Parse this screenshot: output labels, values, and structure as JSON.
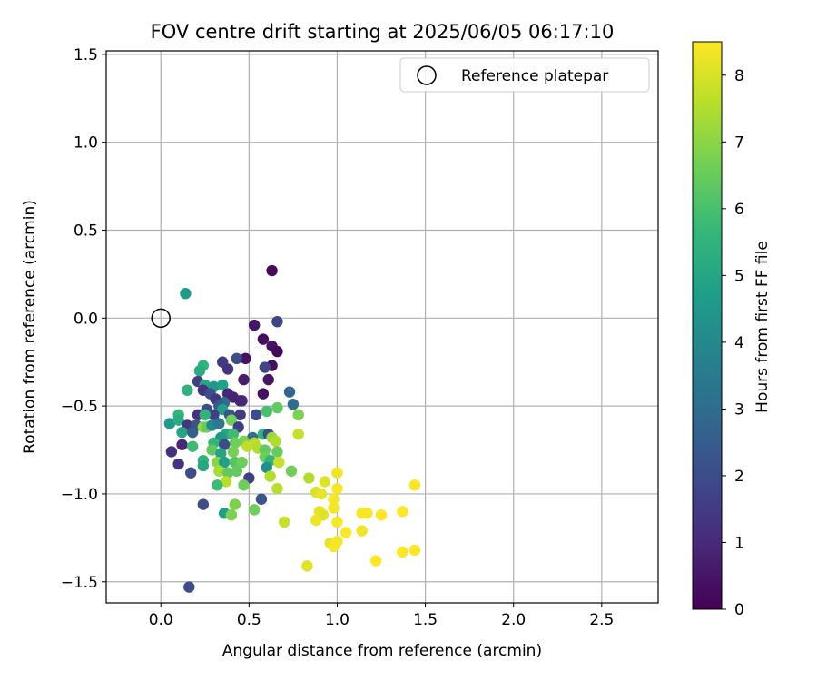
{
  "chart_data": {
    "type": "scatter",
    "title": "FOV centre drift starting at 2025/06/05 06:17:10",
    "xlabel": "Angular distance from reference (arcmin)",
    "ylabel": "Rotation from reference (arcmin)",
    "xlim": [
      -0.31,
      2.82
    ],
    "ylim": [
      -1.62,
      1.52
    ],
    "xticks": [
      0.0,
      0.5,
      1.0,
      1.5,
      2.0,
      2.5
    ],
    "xtick_labels": [
      "0.0",
      "0.5",
      "1.0",
      "1.5",
      "2.0",
      "2.5"
    ],
    "yticks": [
      -1.5,
      -1.0,
      -0.5,
      0.0,
      0.5,
      1.0,
      1.5
    ],
    "ytick_labels": [
      "−1.5",
      "−1.0",
      "−0.5",
      "0.0",
      "0.5",
      "1.0",
      "1.5"
    ],
    "grid": true,
    "legend": {
      "position": "top-right",
      "label": "Reference platepar"
    },
    "reference_point": {
      "x": 0.0,
      "y": 0.0
    },
    "colorbar": {
      "label": "Hours from first FF file",
      "range": [
        0,
        8.5
      ],
      "ticks": [
        0,
        1,
        2,
        3,
        4,
        5,
        6,
        7,
        8
      ],
      "tick_labels": [
        "0",
        "1",
        "2",
        "3",
        "4",
        "5",
        "6",
        "7",
        "8"
      ],
      "colormap": [
        "#440154",
        "#482878",
        "#3e4989",
        "#31688e",
        "#26828e",
        "#1f9e89",
        "#35b779",
        "#6ece58",
        "#b5de2b",
        "#fde725"
      ]
    },
    "points": [
      {
        "x": 0.63,
        "y": 0.27,
        "t": 0.2
      },
      {
        "x": 0.53,
        "y": -0.04,
        "t": 0.5
      },
      {
        "x": 0.66,
        "y": -0.02,
        "t": 1.8
      },
      {
        "x": 0.58,
        "y": -0.12,
        "t": 0.3
      },
      {
        "x": 0.63,
        "y": -0.16,
        "t": 0.4
      },
      {
        "x": 0.66,
        "y": -0.19,
        "t": 0.2
      },
      {
        "x": 0.63,
        "y": -0.27,
        "t": 0.3
      },
      {
        "x": 0.59,
        "y": -0.28,
        "t": 1.8
      },
      {
        "x": 0.48,
        "y": -0.23,
        "t": 0.4
      },
      {
        "x": 0.43,
        "y": -0.23,
        "t": 2.0
      },
      {
        "x": 0.35,
        "y": -0.25,
        "t": 1.5
      },
      {
        "x": 0.38,
        "y": -0.29,
        "t": 1.3
      },
      {
        "x": 0.24,
        "y": -0.27,
        "t": 5.5
      },
      {
        "x": 0.22,
        "y": -0.3,
        "t": 5.2
      },
      {
        "x": 0.47,
        "y": -0.35,
        "t": 0.7
      },
      {
        "x": 0.61,
        "y": -0.35,
        "t": 0.5
      },
      {
        "x": 0.21,
        "y": -0.36,
        "t": 1.6
      },
      {
        "x": 0.25,
        "y": -0.38,
        "t": 5.0
      },
      {
        "x": 0.3,
        "y": -0.39,
        "t": 4.5
      },
      {
        "x": 0.35,
        "y": -0.38,
        "t": 4.8
      },
      {
        "x": 0.15,
        "y": -0.41,
        "t": 5.4
      },
      {
        "x": 0.24,
        "y": -0.41,
        "t": 1.2
      },
      {
        "x": 0.28,
        "y": -0.43,
        "t": 2.0
      },
      {
        "x": 0.38,
        "y": -0.43,
        "t": 1.0
      },
      {
        "x": 0.58,
        "y": -0.43,
        "t": 0.4
      },
      {
        "x": 0.31,
        "y": -0.46,
        "t": 1.4
      },
      {
        "x": 0.41,
        "y": -0.45,
        "t": 0.8
      },
      {
        "x": 0.46,
        "y": -0.47,
        "t": 1.1
      },
      {
        "x": 0.45,
        "y": -0.47,
        "t": 0.9
      },
      {
        "x": 0.36,
        "y": -0.48,
        "t": 3.0
      },
      {
        "x": 0.33,
        "y": -0.5,
        "t": 2.4
      },
      {
        "x": 0.35,
        "y": -0.52,
        "t": 4.8
      },
      {
        "x": 0.26,
        "y": -0.52,
        "t": 2.0
      },
      {
        "x": 0.21,
        "y": -0.55,
        "t": 1.2
      },
      {
        "x": 0.3,
        "y": -0.55,
        "t": 1.6
      },
      {
        "x": 0.25,
        "y": -0.55,
        "t": 5.5
      },
      {
        "x": 0.39,
        "y": -0.55,
        "t": 2.2
      },
      {
        "x": 0.45,
        "y": -0.55,
        "t": 1.5
      },
      {
        "x": 0.54,
        "y": -0.55,
        "t": 2.0
      },
      {
        "x": 0.6,
        "y": -0.53,
        "t": 6.0
      },
      {
        "x": 0.66,
        "y": -0.51,
        "t": 6.4
      },
      {
        "x": 0.73,
        "y": -0.42,
        "t": 2.8
      },
      {
        "x": 0.75,
        "y": -0.49,
        "t": 3.0
      },
      {
        "x": 0.78,
        "y": -0.55,
        "t": 6.8
      },
      {
        "x": 0.1,
        "y": -0.55,
        "t": 5.6
      },
      {
        "x": 0.05,
        "y": -0.6,
        "t": 4.6
      },
      {
        "x": 0.1,
        "y": -0.58,
        "t": 5.2
      },
      {
        "x": 0.15,
        "y": -0.61,
        "t": 1.4
      },
      {
        "x": 0.2,
        "y": -0.61,
        "t": 2.2
      },
      {
        "x": 0.24,
        "y": -0.62,
        "t": 7.2
      },
      {
        "x": 0.26,
        "y": -0.62,
        "t": 6.5
      },
      {
        "x": 0.29,
        "y": -0.61,
        "t": 4.0
      },
      {
        "x": 0.33,
        "y": -0.6,
        "t": 3.5
      },
      {
        "x": 0.4,
        "y": -0.58,
        "t": 6.6
      },
      {
        "x": 0.44,
        "y": -0.62,
        "t": 1.6
      },
      {
        "x": 0.12,
        "y": -0.65,
        "t": 5.0
      },
      {
        "x": 0.18,
        "y": -0.65,
        "t": 2.6
      },
      {
        "x": 0.37,
        "y": -0.66,
        "t": 5.0
      },
      {
        "x": 0.41,
        "y": -0.66,
        "t": 5.8
      },
      {
        "x": 0.58,
        "y": -0.66,
        "t": 5.5
      },
      {
        "x": 0.61,
        "y": -0.66,
        "t": 2.0
      },
      {
        "x": 0.63,
        "y": -0.68,
        "t": 7.2
      },
      {
        "x": 0.65,
        "y": -0.7,
        "t": 7.5
      },
      {
        "x": 0.78,
        "y": -0.66,
        "t": 7.8
      },
      {
        "x": 0.52,
        "y": -0.68,
        "t": 3.0
      },
      {
        "x": 0.53,
        "y": -0.71,
        "t": 7.6
      },
      {
        "x": 0.47,
        "y": -0.7,
        "t": 6.8
      },
      {
        "x": 0.42,
        "y": -0.71,
        "t": 6.6
      },
      {
        "x": 0.34,
        "y": -0.68,
        "t": 4.5
      },
      {
        "x": 0.3,
        "y": -0.71,
        "t": 5.6
      },
      {
        "x": 0.36,
        "y": -0.72,
        "t": 2.0
      },
      {
        "x": 0.55,
        "y": -0.74,
        "t": 7.5
      },
      {
        "x": 0.06,
        "y": -0.76,
        "t": 1.2
      },
      {
        "x": 0.12,
        "y": -0.72,
        "t": 1.0
      },
      {
        "x": 0.18,
        "y": -0.73,
        "t": 5.8
      },
      {
        "x": 0.29,
        "y": -0.75,
        "t": 6.4
      },
      {
        "x": 0.34,
        "y": -0.77,
        "t": 5.0
      },
      {
        "x": 0.41,
        "y": -0.76,
        "t": 6.7
      },
      {
        "x": 0.49,
        "y": -0.73,
        "t": 7.7
      },
      {
        "x": 0.59,
        "y": -0.75,
        "t": 6.4
      },
      {
        "x": 0.59,
        "y": -0.79,
        "t": 6.6
      },
      {
        "x": 0.66,
        "y": -0.76,
        "t": 6.5
      },
      {
        "x": 0.62,
        "y": -0.81,
        "t": 5.6
      },
      {
        "x": 0.67,
        "y": -0.82,
        "t": 7.8
      },
      {
        "x": 0.6,
        "y": -0.85,
        "t": 4.2
      },
      {
        "x": 0.74,
        "y": -0.87,
        "t": 6.6
      },
      {
        "x": 0.1,
        "y": -0.83,
        "t": 1.3
      },
      {
        "x": 0.24,
        "y": -0.81,
        "t": 5.5
      },
      {
        "x": 0.24,
        "y": -0.84,
        "t": 5.0
      },
      {
        "x": 0.32,
        "y": -0.82,
        "t": 7.0
      },
      {
        "x": 0.36,
        "y": -0.82,
        "t": 4.8
      },
      {
        "x": 0.42,
        "y": -0.82,
        "t": 6.2
      },
      {
        "x": 0.46,
        "y": -0.82,
        "t": 6.6
      },
      {
        "x": 0.17,
        "y": -0.88,
        "t": 2.0
      },
      {
        "x": 0.33,
        "y": -0.87,
        "t": 7.4
      },
      {
        "x": 0.38,
        "y": -0.88,
        "t": 6.4
      },
      {
        "x": 0.43,
        "y": -0.87,
        "t": 6.4
      },
      {
        "x": 0.5,
        "y": -0.91,
        "t": 1.6
      },
      {
        "x": 0.62,
        "y": -0.9,
        "t": 7.5
      },
      {
        "x": 0.66,
        "y": -0.97,
        "t": 7.6
      },
      {
        "x": 0.84,
        "y": -0.91,
        "t": 7.5
      },
      {
        "x": 0.37,
        "y": -0.93,
        "t": 7.6
      },
      {
        "x": 0.32,
        "y": -0.95,
        "t": 5.8
      },
      {
        "x": 0.47,
        "y": -0.95,
        "t": 6.6
      },
      {
        "x": 0.24,
        "y": -1.06,
        "t": 2.0
      },
      {
        "x": 0.42,
        "y": -1.06,
        "t": 6.8
      },
      {
        "x": 0.57,
        "y": -1.03,
        "t": 2.2
      },
      {
        "x": 0.53,
        "y": -1.09,
        "t": 6.6
      },
      {
        "x": 0.36,
        "y": -1.11,
        "t": 4.8
      },
      {
        "x": 0.4,
        "y": -1.12,
        "t": 6.8
      },
      {
        "x": 0.7,
        "y": -1.16,
        "t": 7.8
      },
      {
        "x": 0.16,
        "y": -1.53,
        "t": 2.0
      },
      {
        "x": 0.14,
        "y": 0.14,
        "t": 4.6
      },
      {
        "x": 0.88,
        "y": -0.99,
        "t": 8.0
      },
      {
        "x": 0.91,
        "y": -1.0,
        "t": 8.2
      },
      {
        "x": 0.93,
        "y": -0.93,
        "t": 8.1
      },
      {
        "x": 1.0,
        "y": -0.88,
        "t": 8.3
      },
      {
        "x": 0.98,
        "y": -1.03,
        "t": 8.4
      },
      {
        "x": 1.0,
        "y": -0.97,
        "t": 8.4
      },
      {
        "x": 0.9,
        "y": -1.1,
        "t": 8.2
      },
      {
        "x": 0.92,
        "y": -1.12,
        "t": 8.1
      },
      {
        "x": 0.88,
        "y": -1.15,
        "t": 8.3
      },
      {
        "x": 0.98,
        "y": -1.08,
        "t": 8.4
      },
      {
        "x": 1.0,
        "y": -1.16,
        "t": 8.4
      },
      {
        "x": 1.05,
        "y": -1.22,
        "t": 8.5
      },
      {
        "x": 1.14,
        "y": -1.11,
        "t": 8.4
      },
      {
        "x": 1.17,
        "y": -1.11,
        "t": 8.4
      },
      {
        "x": 1.25,
        "y": -1.12,
        "t": 8.5
      },
      {
        "x": 1.14,
        "y": -1.21,
        "t": 8.3
      },
      {
        "x": 0.96,
        "y": -1.28,
        "t": 8.2
      },
      {
        "x": 0.98,
        "y": -1.3,
        "t": 8.4
      },
      {
        "x": 1.0,
        "y": -1.27,
        "t": 8.4
      },
      {
        "x": 0.83,
        "y": -1.41,
        "t": 8.1
      },
      {
        "x": 1.22,
        "y": -1.38,
        "t": 8.5
      },
      {
        "x": 1.37,
        "y": -1.1,
        "t": 8.5
      },
      {
        "x": 1.44,
        "y": -0.95,
        "t": 8.5
      },
      {
        "x": 1.37,
        "y": -1.33,
        "t": 8.5
      },
      {
        "x": 1.44,
        "y": -1.32,
        "t": 8.5
      }
    ]
  }
}
